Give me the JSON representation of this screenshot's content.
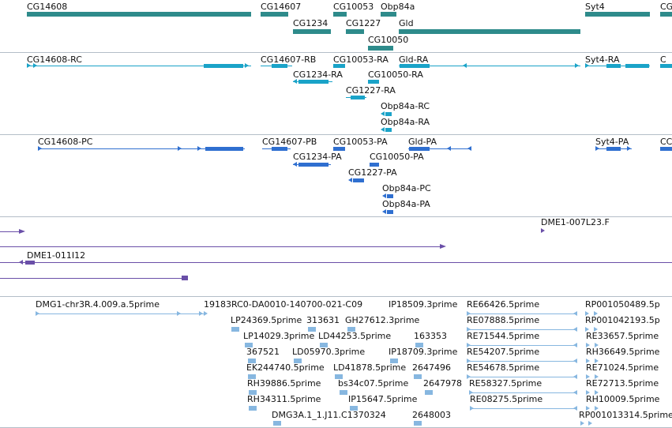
{
  "colors": {
    "gene": "#2e8b8b",
    "transcript_rc": "#1aa3c8",
    "transcript_pc": "#2f6fd0",
    "clone": "#6a4fa8",
    "est": "#87b7e0",
    "divider": "#b4bec8"
  },
  "tracks": {
    "genes": {
      "labels": [
        "CG14608",
        "CG14607",
        "CG10053",
        "Obp84a",
        "Syt4",
        "CG",
        "CG1234",
        "CG1227",
        "Gld",
        "CG10050"
      ]
    },
    "transcripts_r": {
      "labels": [
        "CG14608-RC",
        "CG14607-RB",
        "CG10053-RA",
        "Gld-RA",
        "Syt4-RA",
        "C",
        "CG1234-RA",
        "CG10050-RA",
        "CG1227-RA",
        "Obp84a-RC",
        "Obp84a-RA"
      ]
    },
    "transcripts_p": {
      "labels": [
        "CG14608-PC",
        "CG14607-PB",
        "CG10053-PA",
        "Gld-PA",
        "Syt4-PA",
        "CC",
        "CG1234-PA",
        "CG10050-PA",
        "CG1227-PA",
        "Obp84a-PC",
        "Obp84a-PA"
      ]
    },
    "clones": {
      "labels": [
        "DME1-007L23.F",
        "DME1-011I12"
      ]
    },
    "ests": {
      "labels": [
        "DMG1-chr3R.4.009.a.5prime",
        "19183RC0-DA0010-140700-021-C09",
        "IP18509.3prime",
        "RE66426.5prime",
        "RP001050489.5p",
        "LP24369.5prime",
        "313631",
        "GH27612.3prime",
        "RE07888.5prime",
        "RP001042193.5p",
        "LP14029.3prime",
        "LD44253.5prime",
        "163353",
        "RE71544.5prime",
        "RE33657.5prime",
        "367521",
        "LD05970.3prime",
        "IP18709.3prime",
        "RE54207.5prime",
        "RH36649.5prime",
        "EK244740.5prime",
        "LD41878.5prime",
        "2647496",
        "RE54678.5prime",
        "RE71024.5prime",
        "RH39886.5prime",
        "bs34c07.5prime",
        "2647978",
        "RE58327.5prime",
        "RE72713.5prime",
        "RH34311.5prime",
        "IP15647.5prime",
        "RE08275.5prime",
        "RH10009.5prime",
        "DMG3A.1_1.J11.C1370324",
        "2648003",
        "RP001013314.5prime"
      ]
    }
  }
}
